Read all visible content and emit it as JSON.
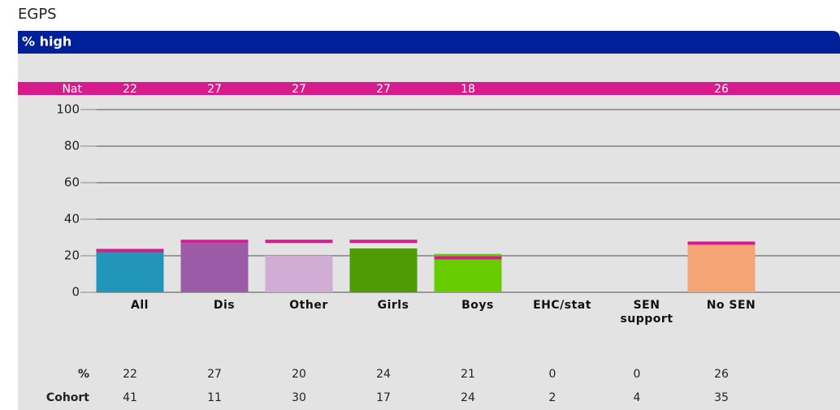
{
  "page_title": "EGPS",
  "chart_data": {
    "type": "bar",
    "title": "% high",
    "categories": [
      "All",
      "Dis",
      "Other",
      "Girls",
      "Boys",
      "EHC/stat",
      "SEN support",
      "No SEN"
    ],
    "series": [
      {
        "name": "%",
        "colors": [
          "#2196b8",
          "#9b5ba6",
          "#d1acd4",
          "#4f9b06",
          "#66cc00",
          "#999999",
          "#999999",
          "#f4a475"
        ],
        "values": [
          22,
          27,
          20,
          24,
          21,
          0,
          0,
          26
        ]
      },
      {
        "name": "Nat",
        "color": "#d81b8c",
        "values": [
          22,
          27,
          27,
          27,
          18,
          null,
          null,
          26
        ]
      }
    ],
    "cohort_label": "Cohort",
    "cohort": [
      41,
      11,
      30,
      17,
      24,
      2,
      4,
      35
    ],
    "ylim": [
      0,
      100
    ],
    "yticks": [
      0,
      20,
      40,
      60,
      80,
      100
    ],
    "grid": true
  }
}
